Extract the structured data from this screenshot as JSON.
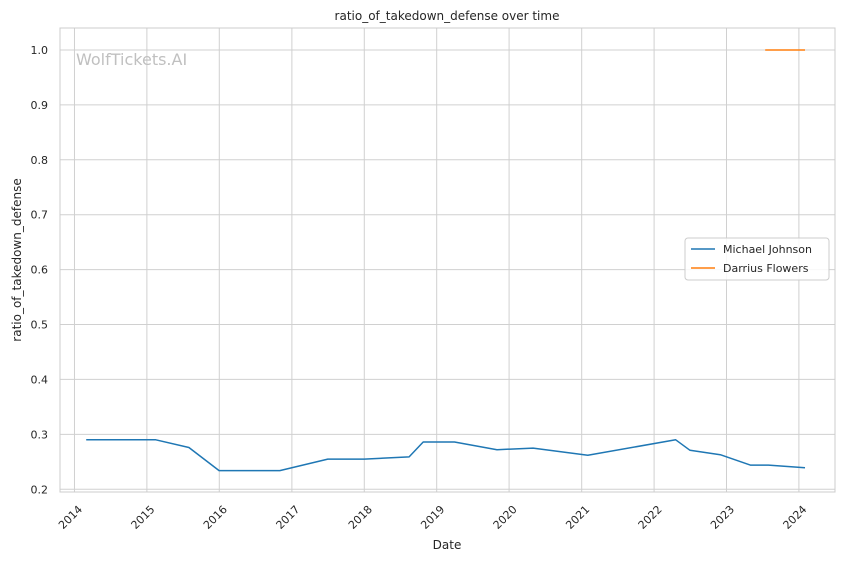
{
  "chart_data": {
    "type": "line",
    "title": "ratio_of_takedown_defense over time",
    "xlabel": "Date",
    "ylabel": "ratio_of_takedown_defense",
    "watermark": "WolfTickets.AI",
    "xlim": [
      "2013-10-20",
      "2024-07-01"
    ],
    "ylim": [
      0.195,
      1.04
    ],
    "x_ticks": [
      "2014",
      "2015",
      "2016",
      "2017",
      "2018",
      "2019",
      "2020",
      "2021",
      "2022",
      "2023",
      "2024"
    ],
    "y_ticks": [
      "0.2",
      "0.3",
      "0.4",
      "0.5",
      "0.6",
      "0.7",
      "0.8",
      "0.9",
      "1.0"
    ],
    "grid": true,
    "legend_position": "center-right",
    "series": [
      {
        "name": "Michael Johnson",
        "color": "#1f77b4",
        "x": [
          "2014-03-01",
          "2015-02-15",
          "2015-08-01",
          "2015-12-31",
          "2016-11-01",
          "2017-07-01",
          "2018-01-01",
          "2018-08-15",
          "2018-10-25",
          "2019-04-01",
          "2019-11-01",
          "2020-05-01",
          "2021-02-01",
          "2022-04-20",
          "2022-07-01",
          "2022-12-01",
          "2023-05-01",
          "2023-08-01",
          "2024-02-01"
        ],
        "values": [
          0.29,
          0.29,
          0.276,
          0.234,
          0.234,
          0.255,
          0.255,
          0.259,
          0.286,
          0.286,
          0.272,
          0.275,
          0.262,
          0.29,
          0.271,
          0.263,
          0.244,
          0.244,
          0.239
        ]
      },
      {
        "name": "Darrius Flowers",
        "color": "#ff7f0e",
        "x": [
          "2023-07-15",
          "2024-02-01"
        ],
        "values": [
          1.0,
          1.0
        ]
      }
    ]
  }
}
